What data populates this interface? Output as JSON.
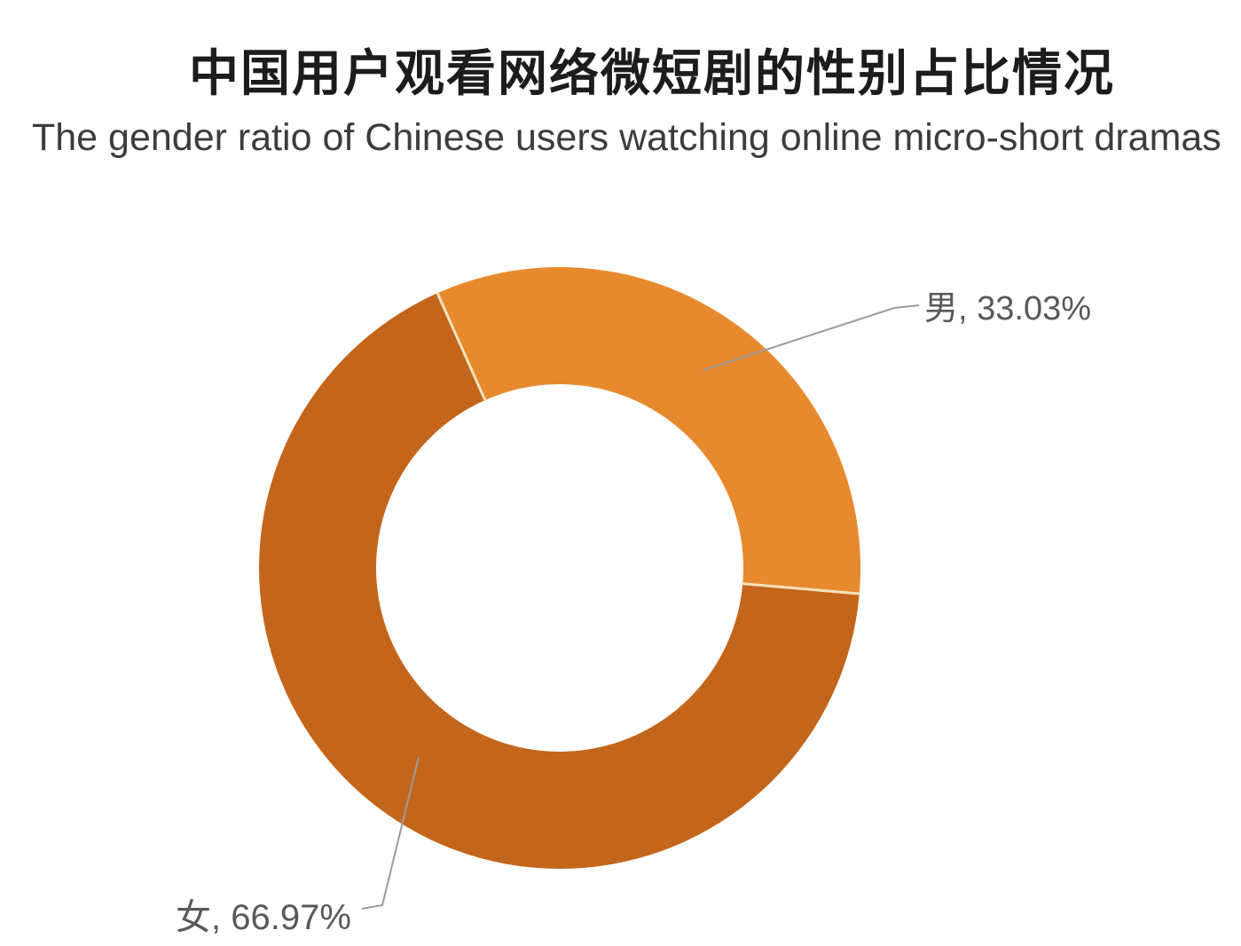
{
  "chart_data": {
    "type": "pie",
    "subtype": "donut",
    "title": "中国用户观看网络微短剧的性别占比情况",
    "subtitle": "The gender ratio of Chinese users watching online micro-short dramas",
    "slices": [
      {
        "label": "男",
        "value": 33.03,
        "display": "男, 33.03%",
        "color": "#E78A2E"
      },
      {
        "label": "女",
        "value": 66.97,
        "display": "女, 66.97%",
        "color": "#C3661B"
      }
    ],
    "start_angle_deg": -24,
    "direction": "clockwise",
    "inner_radius_ratio": 0.61,
    "legend": "none",
    "labels_style": "callout-with-leader-lines",
    "colors": {
      "male_slice": "#E78A2E",
      "female_slice": "#C3661B",
      "slice_separator": "#F6E2BE",
      "leader_line": "#9B9B9B",
      "label_text": "#595959",
      "title_text": "#1C1C1C",
      "subtitle_text": "#3C3C3C",
      "background": "#FFFFFF"
    }
  }
}
